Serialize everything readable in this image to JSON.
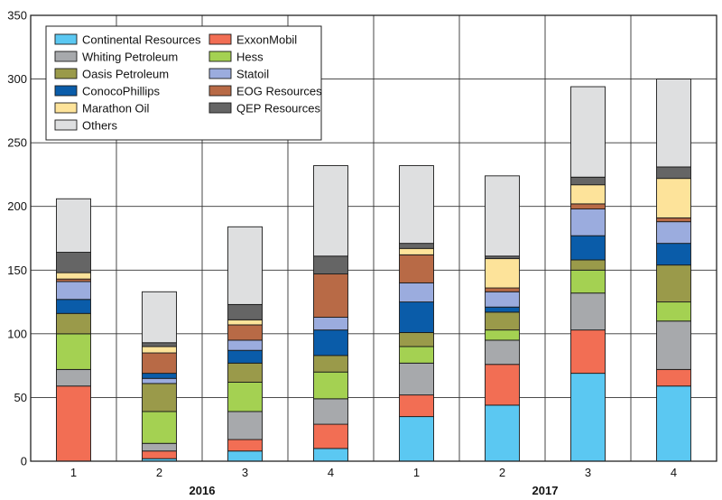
{
  "chart_data": {
    "type": "bar",
    "stacked": true,
    "title": "",
    "xlabel": "",
    "ylabel": "",
    "ylim": [
      0,
      350
    ],
    "yticks": [
      0,
      50,
      100,
      150,
      200,
      250,
      300,
      350
    ],
    "grid": true,
    "legend_position": "top-left",
    "categories": [
      "1",
      "2",
      "3",
      "4",
      "1",
      "2",
      "3",
      "4"
    ],
    "year_groups": [
      {
        "label": "2016",
        "categories": [
          0,
          1,
          2,
          3
        ]
      },
      {
        "label": "2017",
        "categories": [
          4,
          5,
          6,
          7
        ]
      }
    ],
    "series": [
      {
        "name": "Continental Resources",
        "color": "#5bc8f2",
        "values": [
          0,
          2,
          8,
          10,
          35,
          44,
          69,
          59
        ]
      },
      {
        "name": "ExxonMobil",
        "color": "#f26e54",
        "values": [
          59,
          6,
          9,
          19,
          17,
          32,
          34,
          13
        ]
      },
      {
        "name": "Whiting Petroleum",
        "color": "#a7a9ac",
        "values": [
          13,
          6,
          22,
          20,
          25,
          19,
          29,
          38
        ]
      },
      {
        "name": "Hess",
        "color": "#a4d152",
        "values": [
          28,
          25,
          23,
          21,
          13,
          8,
          18,
          15
        ]
      },
      {
        "name": "Oasis Petroleum",
        "color": "#9a9a4a",
        "values": [
          16,
          22,
          15,
          13,
          11,
          14,
          8,
          29
        ]
      },
      {
        "name": "Statoil",
        "color": "#9bacde",
        "values": [
          0,
          4,
          0,
          0,
          0,
          0,
          0,
          0
        ]
      },
      {
        "name": "ConocoPhillips",
        "color": "#0a5ca9",
        "values": [
          11,
          4,
          10,
          20,
          24,
          4,
          19,
          17
        ]
      },
      {
        "name": "Statoil",
        "color": "#9bacde",
        "values": [
          14,
          0,
          8,
          10,
          15,
          12,
          21,
          17
        ]
      },
      {
        "name": "EOG Resources",
        "color": "#b86a46",
        "values": [
          2,
          16,
          12,
          34,
          22,
          3,
          4,
          3
        ]
      },
      {
        "name": "Marathon Oil",
        "color": "#fde39a",
        "values": [
          5,
          5,
          4,
          0,
          5,
          23,
          15,
          31
        ]
      },
      {
        "name": "QEP Resources",
        "color": "#656565",
        "values": [
          16,
          3,
          12,
          14,
          4,
          2,
          6,
          9
        ]
      },
      {
        "name": "Others",
        "color": "#dedfe0",
        "values": [
          42,
          40,
          61,
          71,
          61,
          63,
          71,
          69
        ]
      }
    ],
    "legend": {
      "columns": [
        [
          {
            "name": "Continental Resources",
            "color": "#5bc8f2"
          },
          {
            "name": "Whiting Petroleum",
            "color": "#a7a9ac"
          },
          {
            "name": "Oasis Petroleum",
            "color": "#9a9a4a"
          },
          {
            "name": "ConocoPhillips",
            "color": "#0a5ca9"
          },
          {
            "name": "Marathon Oil",
            "color": "#fde39a"
          },
          {
            "name": "Others",
            "color": "#dedfe0"
          }
        ],
        [
          {
            "name": "ExxonMobil",
            "color": "#f26e54"
          },
          {
            "name": "Hess",
            "color": "#a4d152"
          },
          {
            "name": "Statoil",
            "color": "#9bacde"
          },
          {
            "name": "EOG Resources",
            "color": "#b86a46"
          },
          {
            "name": "QEP Resources",
            "color": "#656565"
          }
        ]
      ]
    }
  }
}
